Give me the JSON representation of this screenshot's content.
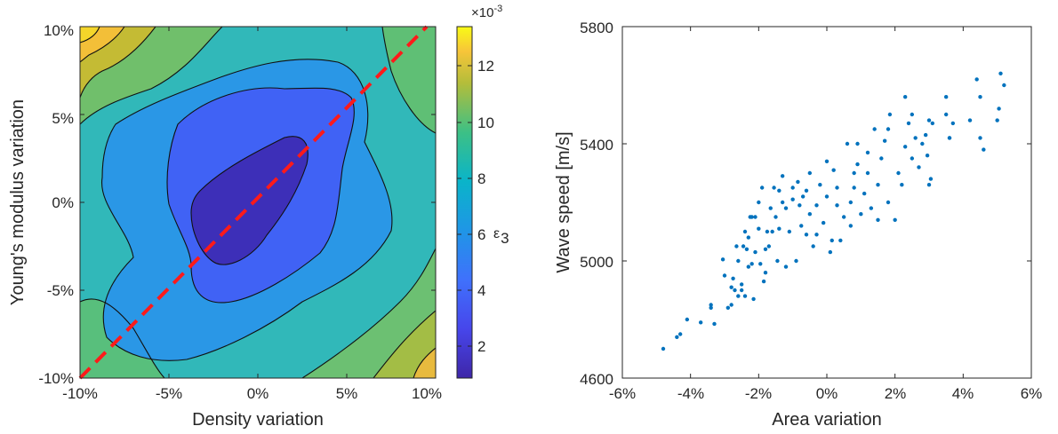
{
  "figure": {
    "left": {
      "xlabel": "Density variation",
      "ylabel": "Young's modulus variation",
      "xticks": [
        "-10%",
        "-5%",
        "0%",
        "5%",
        "10%"
      ],
      "yticks": [
        "10%",
        "5%",
        "0%",
        "-5%",
        "-10%"
      ],
      "colorbar": {
        "exponent_label": "×10",
        "exponent_power": "-3",
        "ticks": [
          "12",
          "10",
          "8",
          "6",
          "4",
          "2"
        ],
        "label": "ε",
        "label_sub": "3"
      }
    },
    "right": {
      "xlabel": "Area variation",
      "ylabel": "Wave speed [m/s]",
      "xticks": [
        "-6%",
        "-4%",
        "-2%",
        "0%",
        "2%",
        "4%",
        "6%"
      ],
      "yticks": [
        "5800",
        "5400",
        "5000",
        "4600"
      ]
    },
    "colors": {
      "dashed_line": "#ff1a1a",
      "scatter": "#0072bd",
      "axis": "#262626"
    }
  },
  "chart_data": [
    {
      "type": "heatmap",
      "title": "",
      "xlabel": "Density variation",
      "ylabel": "Young's modulus variation",
      "xlim": [
        -10,
        10
      ],
      "ylim": [
        -10,
        10
      ],
      "units": "%",
      "colormap": "parula",
      "color_range": [
        0.6,
        13.2
      ],
      "colorbar_scale": "x 1e-3",
      "contour_levels": [
        2,
        4,
        6,
        8,
        10,
        12
      ],
      "min_location": [
        -0.5,
        -0.5
      ],
      "reference_line": {
        "style": "dashed",
        "color": "red",
        "from": [
          -10,
          -10
        ],
        "to": [
          9.5,
          10
        ]
      },
      "grid": false
    },
    {
      "type": "scatter",
      "title": "",
      "xlabel": "Area variation",
      "ylabel": "Wave speed [m/s]",
      "xlim": [
        -6,
        6
      ],
      "ylim": [
        4600,
        5800
      ],
      "grid": false,
      "series": [
        {
          "x": [
            -4.8,
            -4.4,
            -4.3,
            -4.1,
            -3.7,
            -3.4,
            -3.4,
            -3.3,
            -3.05,
            -3.0,
            -2.9,
            -2.8,
            -2.8,
            -2.75,
            -2.7,
            -2.65,
            -2.6,
            -2.6,
            -2.5,
            -2.5,
            -2.45,
            -2.4,
            -2.4,
            -2.35,
            -2.3,
            -2.3,
            -2.25,
            -2.2,
            -2.2,
            -2.15,
            -2.1,
            -2.1,
            -2.0,
            -2.0,
            -1.95,
            -1.9,
            -1.85,
            -1.8,
            -1.8,
            -1.75,
            -1.7,
            -1.65,
            -1.6,
            -1.55,
            -1.5,
            -1.45,
            -1.4,
            -1.4,
            -1.3,
            -1.3,
            -1.2,
            -1.2,
            -1.1,
            -1.0,
            -1.0,
            -0.9,
            -0.85,
            -0.8,
            -0.75,
            -0.7,
            -0.6,
            -0.6,
            -0.5,
            -0.5,
            -0.4,
            -0.3,
            -0.3,
            -0.2,
            -0.1,
            0.0,
            0.0,
            0.1,
            0.15,
            0.2,
            0.3,
            0.3,
            0.4,
            0.5,
            0.6,
            0.7,
            0.7,
            0.8,
            0.8,
            0.9,
            0.9,
            1.0,
            1.1,
            1.2,
            1.2,
            1.3,
            1.4,
            1.5,
            1.5,
            1.6,
            1.7,
            1.8,
            1.8,
            1.85,
            2.0,
            2.1,
            2.2,
            2.3,
            2.3,
            2.4,
            2.5,
            2.5,
            2.6,
            2.7,
            2.8,
            2.9,
            2.95,
            3.0,
            3.0,
            3.05,
            3.1,
            3.5,
            3.5,
            3.6,
            3.6,
            3.7,
            4.2,
            4.4,
            4.5,
            4.5,
            4.6,
            5.0,
            5.05,
            5.1,
            5.2
          ],
          "y": [
            4700,
            4740,
            4750,
            4800,
            4790,
            4840,
            4850,
            4785,
            5005,
            4950,
            4840,
            4850,
            4910,
            4940,
            4900,
            5050,
            4880,
            5000,
            4900,
            4920,
            5050,
            4880,
            5100,
            5040,
            4980,
            5080,
            5150,
            4990,
            5150,
            4870,
            5030,
            5150,
            5110,
            5200,
            4990,
            5250,
            4930,
            4960,
            5040,
            5100,
            5050,
            5180,
            5100,
            5250,
            5150,
            5000,
            5240,
            5110,
            5200,
            5290,
            4980,
            5180,
            5100,
            5250,
            5210,
            5000,
            5270,
            5190,
            5120,
            5220,
            5090,
            5240,
            5160,
            5300,
            5050,
            5190,
            5090,
            5260,
            5130,
            5340,
            5220,
            5030,
            5070,
            5310,
            5190,
            5250,
            5070,
            5150,
            5400,
            5120,
            5200,
            5300,
            5250,
            5400,
            5330,
            5160,
            5230,
            5370,
            5300,
            5180,
            5450,
            5140,
            5260,
            5350,
            5410,
            5450,
            5200,
            5500,
            5140,
            5300,
            5260,
            5560,
            5390,
            5470,
            5350,
            5500,
            5420,
            5320,
            5400,
            5430,
            5360,
            5480,
            5260,
            5280,
            5470,
            5500,
            5560,
            5420,
            5420,
            5470,
            5480,
            5620,
            5560,
            5420,
            5380,
            5480,
            5520,
            5640,
            5600
          ],
          "marker": "dot",
          "color": "#0072bd"
        }
      ]
    }
  ]
}
